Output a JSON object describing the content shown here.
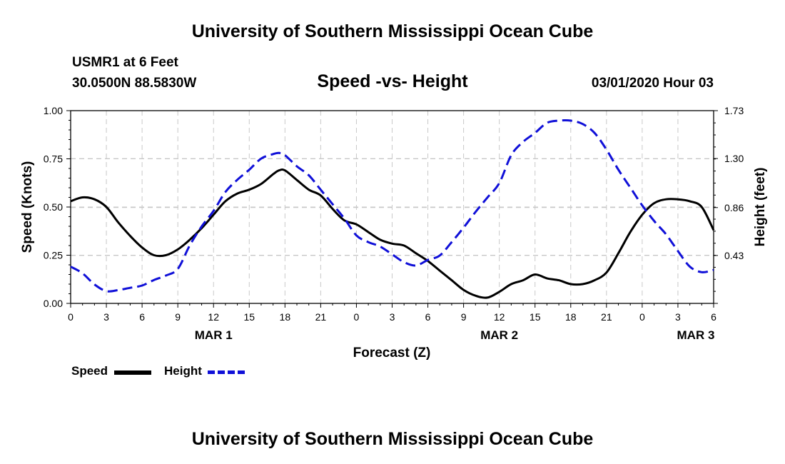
{
  "header": {
    "title": "University of Southern Mississippi Ocean Cube",
    "station": "USMR1 at 6 Feet",
    "coords": "30.0500N 88.5830W",
    "subtitle": "Speed -vs- Height",
    "datetime": "03/01/2020 Hour 03"
  },
  "footer": {
    "title": "University of Southern Mississippi Ocean Cube"
  },
  "legend": {
    "speed_label": "Speed",
    "height_label": "Height"
  },
  "colors": {
    "speed": "#000000",
    "height": "#1010d8",
    "grid": "#c8c8c8"
  },
  "chart_data": {
    "type": "line",
    "xlabel": "Forecast (Z)",
    "ylabel": "Speed (Knots)",
    "y2label": "Height (feet)",
    "x_tick_labels": [
      "0",
      "3",
      "6",
      "9",
      "12",
      "15",
      "18",
      "21",
      "0",
      "3",
      "6",
      "9",
      "12",
      "15",
      "18",
      "21",
      "0",
      "3",
      "6"
    ],
    "day_labels": [
      {
        "label": "MAR 1",
        "hour": 12
      },
      {
        "label": "MAR 2",
        "hour": 36
      },
      {
        "label": "MAR 3",
        "hour": 52.5
      }
    ],
    "xlim": [
      0,
      54
    ],
    "ylim": [
      0,
      1.0
    ],
    "y_tick_labels": [
      "0.00",
      "0.25",
      "0.50",
      "0.75",
      "1.00"
    ],
    "y2lim": [
      0,
      1.73
    ],
    "y2_ticks": [
      0.43,
      0.86,
      1.3,
      1.73
    ],
    "y2_tick_labels": [
      "0.43",
      "0.86",
      "1.30",
      "1.73"
    ],
    "grid": true,
    "series": [
      {
        "name": "Speed",
        "axis": "left",
        "style": "solid",
        "x": [
          0,
          1,
          2,
          3,
          4,
          5,
          6,
          7,
          8,
          9,
          10,
          11,
          12,
          13,
          14,
          15,
          16,
          17,
          17.5,
          18,
          19,
          20,
          21,
          22,
          23,
          24,
          25,
          26,
          27,
          28,
          29,
          30,
          31,
          32,
          33,
          34,
          35,
          36,
          37,
          38,
          39,
          40,
          41,
          42,
          43,
          44,
          45,
          46,
          47,
          48,
          49,
          50,
          51,
          52,
          53,
          54
        ],
        "values": [
          0.53,
          0.55,
          0.54,
          0.5,
          0.42,
          0.35,
          0.29,
          0.25,
          0.25,
          0.28,
          0.33,
          0.39,
          0.46,
          0.53,
          0.57,
          0.59,
          0.62,
          0.67,
          0.69,
          0.69,
          0.64,
          0.59,
          0.56,
          0.49,
          0.43,
          0.41,
          0.37,
          0.33,
          0.31,
          0.3,
          0.26,
          0.22,
          0.17,
          0.12,
          0.07,
          0.04,
          0.03,
          0.06,
          0.1,
          0.12,
          0.15,
          0.13,
          0.12,
          0.1,
          0.1,
          0.12,
          0.16,
          0.26,
          0.37,
          0.46,
          0.52,
          0.54,
          0.54,
          0.53,
          0.5,
          0.38
        ]
      },
      {
        "name": "Height",
        "axis": "right",
        "style": "dashed",
        "x": [
          0,
          1,
          2,
          3,
          4,
          5,
          6,
          7,
          8,
          9,
          10,
          11,
          12,
          13,
          14,
          15,
          16,
          17,
          17.5,
          18,
          19,
          20,
          21,
          22,
          23,
          24,
          25,
          26,
          27,
          28,
          29,
          30,
          31,
          32,
          33,
          34,
          35,
          36,
          37,
          38,
          39,
          40,
          41,
          42,
          43,
          44,
          45,
          46,
          47,
          48,
          49,
          50,
          51,
          52,
          53,
          54
        ],
        "values": [
          0.33,
          0.27,
          0.17,
          0.11,
          0.12,
          0.14,
          0.16,
          0.21,
          0.25,
          0.31,
          0.52,
          0.69,
          0.83,
          1.0,
          1.11,
          1.2,
          1.3,
          1.34,
          1.35,
          1.33,
          1.23,
          1.15,
          1.02,
          0.89,
          0.76,
          0.61,
          0.55,
          0.51,
          0.44,
          0.37,
          0.34,
          0.39,
          0.43,
          0.55,
          0.68,
          0.82,
          0.95,
          1.08,
          1.33,
          1.45,
          1.53,
          1.62,
          1.64,
          1.64,
          1.61,
          1.53,
          1.38,
          1.2,
          1.04,
          0.88,
          0.74,
          0.62,
          0.47,
          0.33,
          0.28,
          0.3
        ]
      }
    ]
  }
}
